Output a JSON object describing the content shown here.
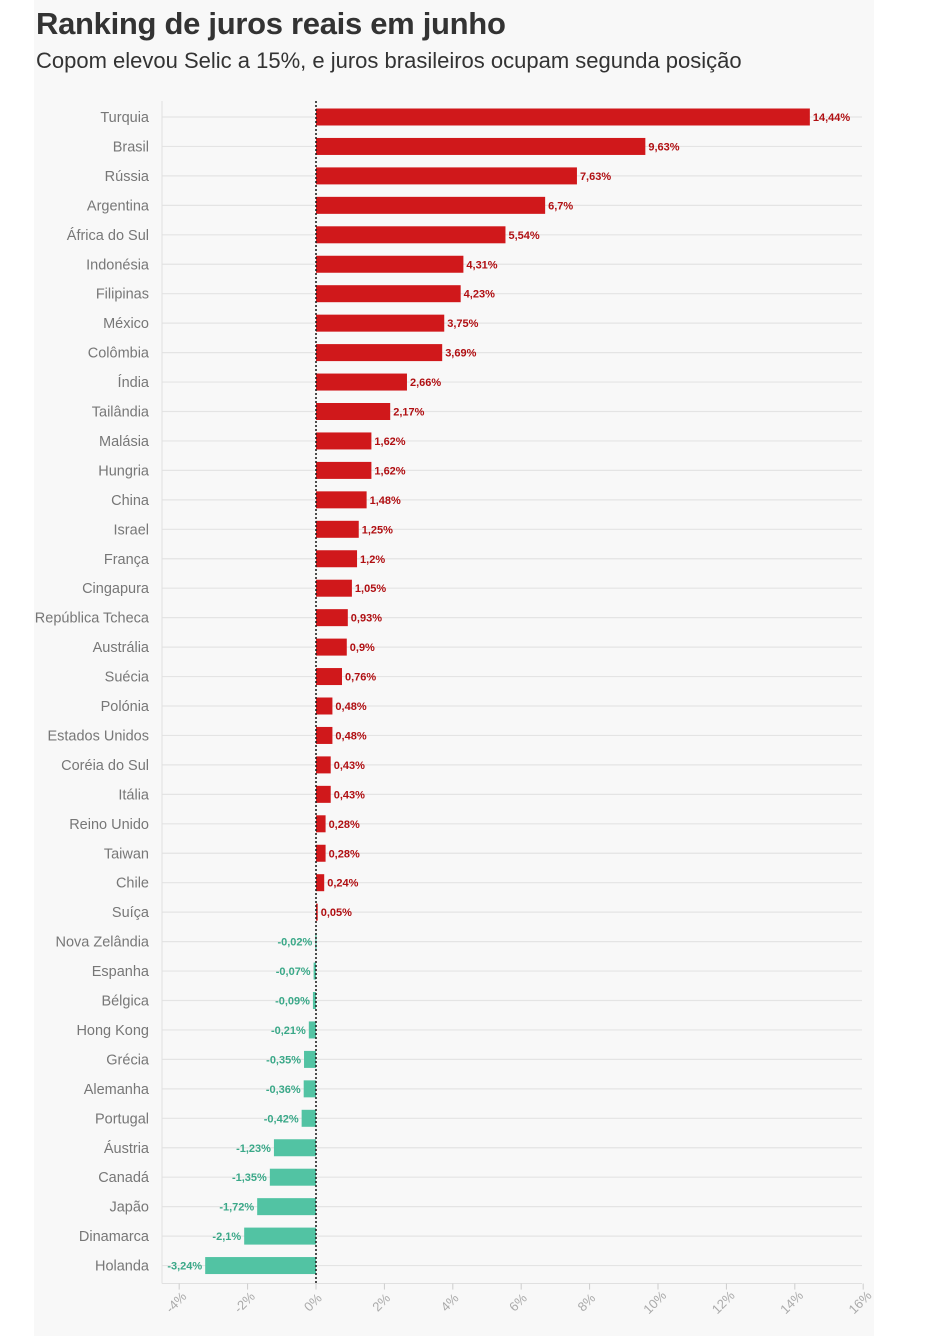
{
  "title": "Ranking de juros reais em junho",
  "subtitle": "Copom elevou Selic a 15%, e juros brasileiros ocupam segunda posição",
  "colors": {
    "positive": "#d0181b",
    "negative": "#52c3a3",
    "positive_label": "#b00f12",
    "negative_label": "#3aa888"
  },
  "chart_data": {
    "type": "bar",
    "orientation": "horizontal",
    "categories": [
      "Turquia",
      "Brasil",
      "Rússia",
      "Argentina",
      "África do Sul",
      "Indonésia",
      "Filipinas",
      "México",
      "Colômbia",
      "Índia",
      "Tailândia",
      "Malásia",
      "Hungria",
      "China",
      "Israel",
      "França",
      "Cingapura",
      "República Tcheca",
      "Austrália",
      "Suécia",
      "Polónia",
      "Estados Unidos",
      "Coréia do Sul",
      "Itália",
      "Reino Unido",
      "Taiwan",
      "Chile",
      "Suíça",
      "Nova Zelândia",
      "Espanha",
      "Bélgica",
      "Hong Kong",
      "Grécia",
      "Alemanha",
      "Portugal",
      "Áustria",
      "Canadá",
      "Japão",
      "Dinamarca",
      "Holanda"
    ],
    "values": [
      14.44,
      9.63,
      7.63,
      6.7,
      5.54,
      4.31,
      4.23,
      3.75,
      3.69,
      2.66,
      2.17,
      1.62,
      1.62,
      1.48,
      1.25,
      1.2,
      1.05,
      0.93,
      0.9,
      0.76,
      0.48,
      0.48,
      0.43,
      0.43,
      0.28,
      0.28,
      0.24,
      0.05,
      -0.02,
      -0.07,
      -0.09,
      -0.21,
      -0.35,
      -0.36,
      -0.42,
      -1.23,
      -1.35,
      -1.72,
      -2.1,
      -3.24
    ],
    "value_labels": [
      "14,44%",
      "9,63%",
      "7,63%",
      "6,7%",
      "5,54%",
      "4,31%",
      "4,23%",
      "3,75%",
      "3,69%",
      "2,66%",
      "2,17%",
      "1,62%",
      "1,62%",
      "1,48%",
      "1,25%",
      "1,2%",
      "1,05%",
      "0,93%",
      "0,9%",
      "0,76%",
      "0,48%",
      "0,48%",
      "0,43%",
      "0,43%",
      "0,28%",
      "0,28%",
      "0,24%",
      "0,05%",
      "-0,02%",
      "-0,07%",
      "-0,09%",
      "-0,21%",
      "-0,35%",
      "-0,36%",
      "-0,42%",
      "-1,23%",
      "-1,35%",
      "-1,72%",
      "-2,1%",
      "-3,24%"
    ],
    "x_ticks": [
      -4,
      -2,
      0,
      2,
      4,
      6,
      8,
      10,
      12,
      14,
      16
    ],
    "x_tick_labels": [
      "-4%",
      "-2%",
      "0%",
      "2%",
      "4%",
      "6%",
      "8%",
      "10%",
      "12%",
      "14%",
      "16%"
    ],
    "xlim": [
      -4.5,
      16
    ],
    "grid": true,
    "zero_line": "dotted"
  }
}
